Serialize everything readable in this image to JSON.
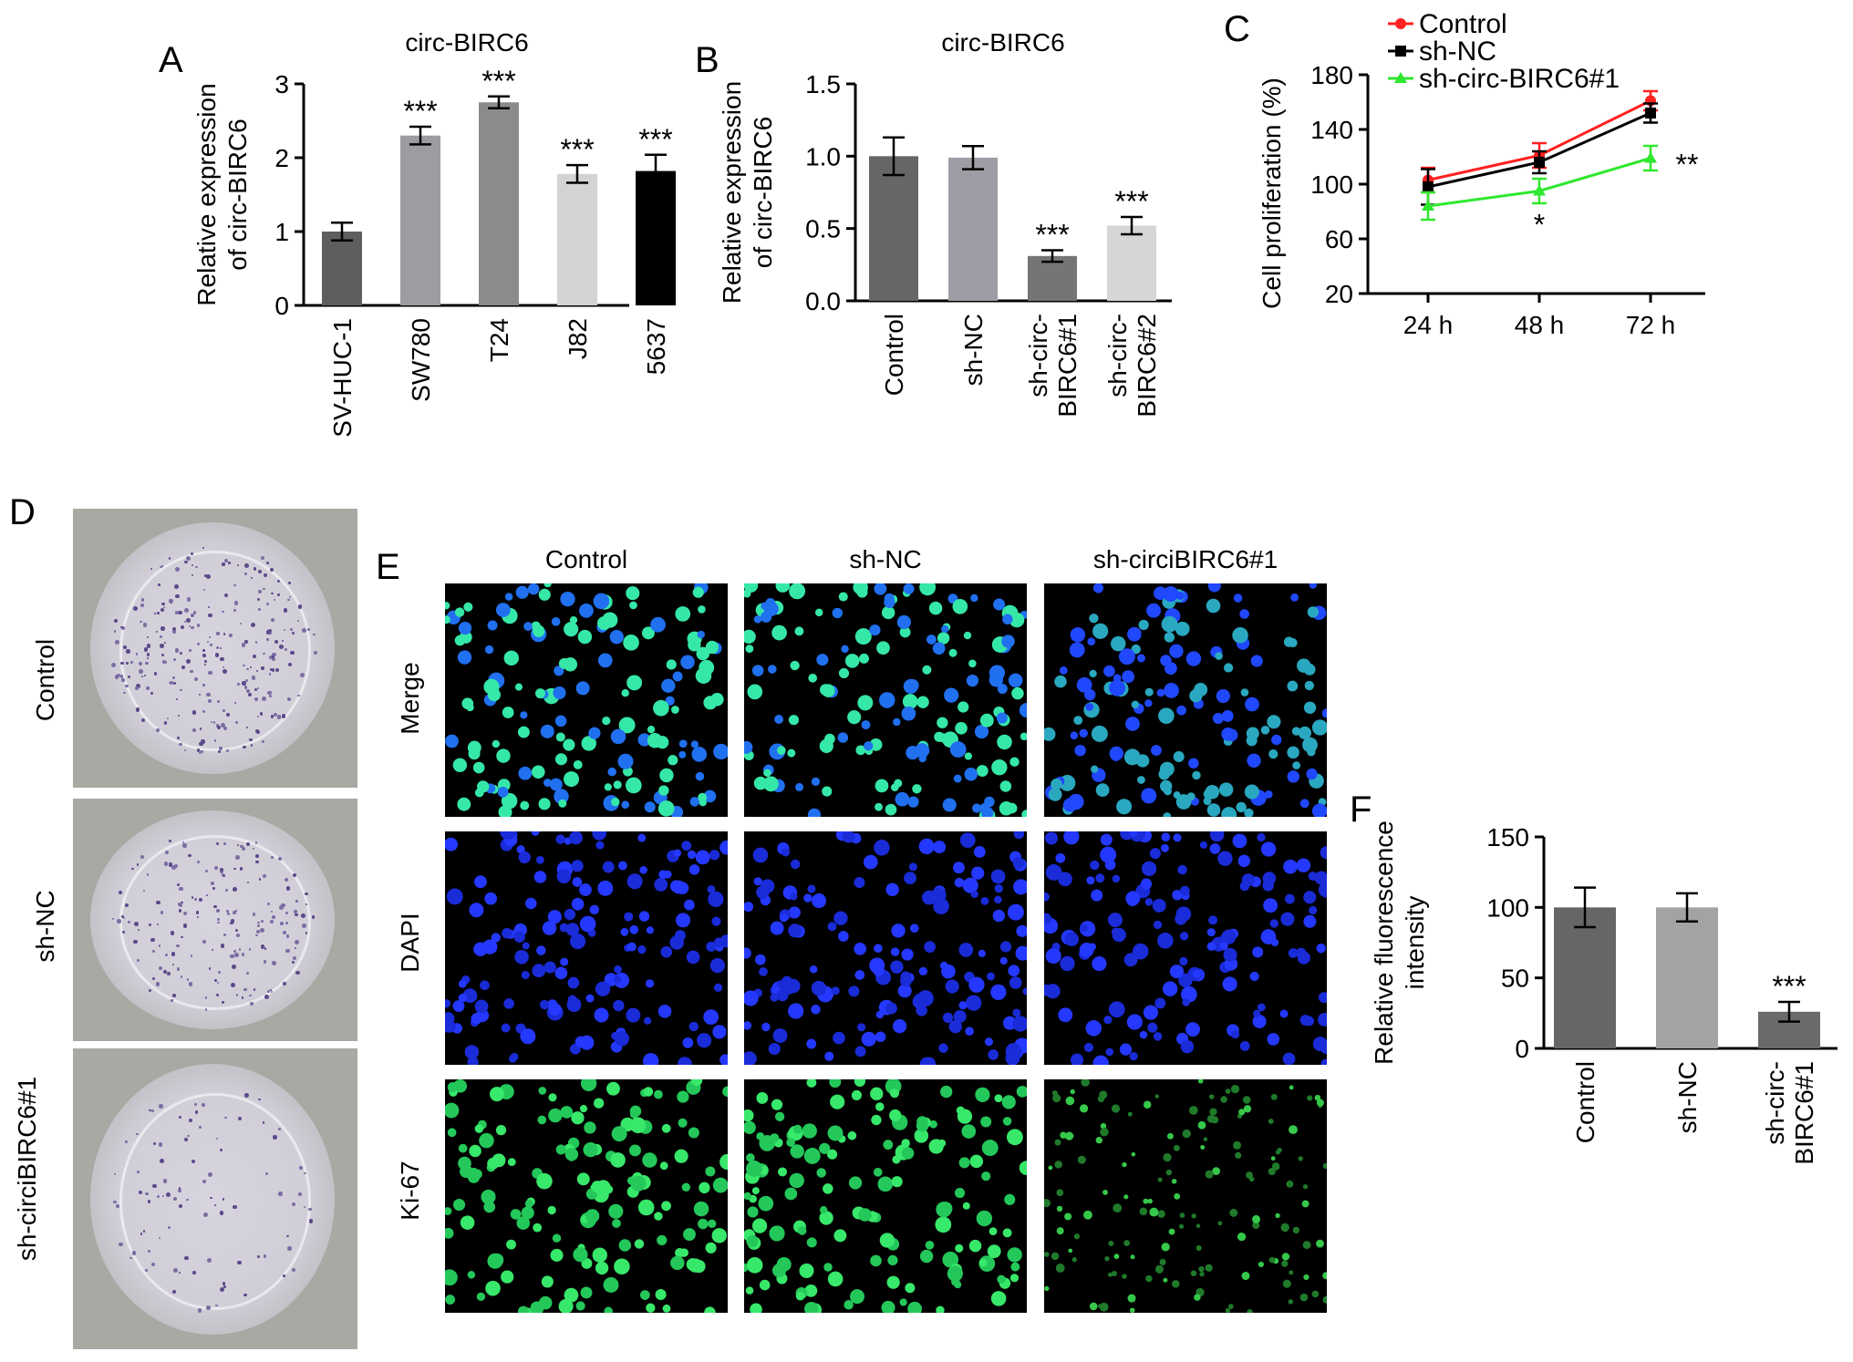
{
  "panels": {
    "A": "A",
    "B": "B",
    "C": "C",
    "D": "D",
    "E": "E",
    "F": "F"
  },
  "colors": {
    "A_bars": [
      "#5e5e5e",
      "#9c9ca3",
      "#8b8b8b",
      "#d3d3d3",
      "#000000"
    ],
    "B_bars": [
      "#666666",
      "#9d9da5",
      "#757575",
      "#d6d6d6"
    ],
    "F_bars": [
      "#666666",
      "#a3a3a3",
      "#6a6a6a"
    ],
    "C_series": [
      "#ff2020",
      "#000000",
      "#2ee82e"
    ]
  },
  "chart_data": [
    {
      "id": "A",
      "type": "bar",
      "title": "circ-BIRC6",
      "ylabel": "Relative expression of circ-BIRC6",
      "ylabel_lines": [
        "Relative expression",
        "of circ-BIRC6"
      ],
      "categories": [
        "SV-HUC-1",
        "SW780",
        "T24",
        "J82",
        "5637"
      ],
      "values": [
        1.0,
        2.3,
        2.75,
        1.78,
        1.82
      ],
      "errors": [
        0.12,
        0.12,
        0.08,
        0.12,
        0.22
      ],
      "annotations": [
        "",
        "***",
        "***",
        "***",
        "***"
      ],
      "ylim": [
        0,
        3
      ],
      "yticks": [
        "0",
        "1",
        "2",
        "3"
      ]
    },
    {
      "id": "B",
      "type": "bar",
      "title": "circ-BIRC6",
      "ylabel": "Relative expression of circ-BIRC6",
      "ylabel_lines": [
        "Relative expression",
        "of circ-BIRC6"
      ],
      "categories": [
        "Control",
        "sh-NC",
        "sh-circ-BIRC6#1",
        "sh-circ-BIRC6#2"
      ],
      "category_lines": [
        [
          "Control"
        ],
        [
          "sh-NC"
        ],
        [
          "sh-circ-",
          "BIRC6#1"
        ],
        [
          "sh-circ-",
          "BIRC6#2"
        ]
      ],
      "values": [
        1.0,
        0.99,
        0.31,
        0.52
      ],
      "errors": [
        0.13,
        0.08,
        0.04,
        0.06
      ],
      "annotations": [
        "",
        "",
        "***",
        "***"
      ],
      "ylim": [
        0,
        1.5
      ],
      "yticks": [
        "0.0",
        "0.5",
        "1.0",
        "1.5"
      ]
    },
    {
      "id": "C",
      "type": "line",
      "ylabel": "Cell proliferation (%)",
      "x": [
        "24 h",
        "48 h",
        "72 h"
      ],
      "series": [
        {
          "name": "Control",
          "values": [
            103,
            121,
            161
          ],
          "errors": [
            9,
            9,
            7
          ]
        },
        {
          "name": "sh-NC",
          "values": [
            98,
            116,
            152
          ],
          "errors": [
            13,
            8,
            7
          ]
        },
        {
          "name": "sh-circ-BIRC6#1",
          "values": [
            84,
            95,
            119
          ],
          "errors": [
            10,
            9,
            9
          ]
        }
      ],
      "annotations": [
        {
          "x": "48 h",
          "text": "*"
        },
        {
          "x": "72 h",
          "text": "**"
        }
      ],
      "ylim": [
        20,
        180
      ],
      "yticks": [
        "20",
        "60",
        "100",
        "140",
        "180"
      ],
      "legend": "top-left"
    },
    {
      "id": "F",
      "type": "bar",
      "ylabel": "Relative fluorescence intensity",
      "ylabel_lines": [
        "Relative fluorescence",
        "intensity"
      ],
      "categories": [
        "Control",
        "sh-NC",
        "sh-circ-BIRC6#1"
      ],
      "category_lines": [
        [
          "Control"
        ],
        [
          "sh-NC"
        ],
        [
          "sh-circ-",
          "BIRC6#1"
        ]
      ],
      "values": [
        100,
        100,
        26
      ],
      "errors": [
        14,
        10,
        7
      ],
      "annotations": [
        "",
        "",
        "***"
      ],
      "ylim": [
        0,
        150
      ],
      "yticks": [
        "0",
        "50",
        "100",
        "150"
      ]
    }
  ],
  "panel_d": {
    "rows": [
      "Control",
      "sh-NC",
      "sh-circiBIRC6#1"
    ]
  },
  "panel_e": {
    "columns": [
      "Control",
      "sh-NC",
      "sh-circiBIRC6#1"
    ],
    "rows": [
      "Merge",
      "DAPI",
      "Ki-67"
    ]
  }
}
